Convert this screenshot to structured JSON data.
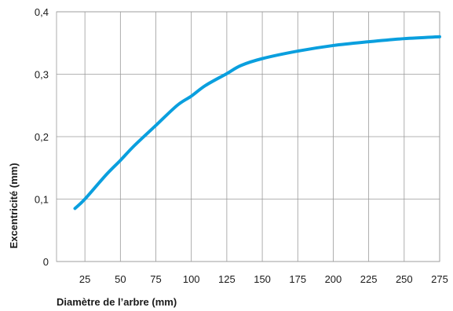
{
  "chart_data": {
    "type": "line",
    "title": "",
    "xlabel": "Diamètre de l’arbre (mm)",
    "ylabel": "Excentricité (mm)",
    "xlim": [
      5,
      275
    ],
    "ylim": [
      0,
      0.4
    ],
    "x_ticks": [
      25,
      50,
      75,
      100,
      125,
      150,
      175,
      200,
      225,
      250,
      275
    ],
    "x_tick_labels": [
      "25",
      "50",
      "75",
      "100",
      "125",
      "150",
      "175",
      "200",
      "225",
      "250",
      "275"
    ],
    "y_ticks": [
      0,
      0.1,
      0.2,
      0.3,
      0.4
    ],
    "y_tick_labels": [
      "0",
      "0,1",
      "0,2",
      "0,3",
      "0,4"
    ],
    "grid": true,
    "series": [
      {
        "color": "#0a9fde",
        "x": [
          18,
          25,
          40,
          50,
          60,
          75,
          90,
          100,
          110,
          125,
          135,
          150,
          175,
          200,
          225,
          250,
          275
        ],
        "y": [
          0.085,
          0.1,
          0.139,
          0.162,
          0.186,
          0.218,
          0.25,
          0.265,
          0.282,
          0.301,
          0.314,
          0.325,
          0.337,
          0.346,
          0.352,
          0.357,
          0.36
        ]
      }
    ]
  }
}
